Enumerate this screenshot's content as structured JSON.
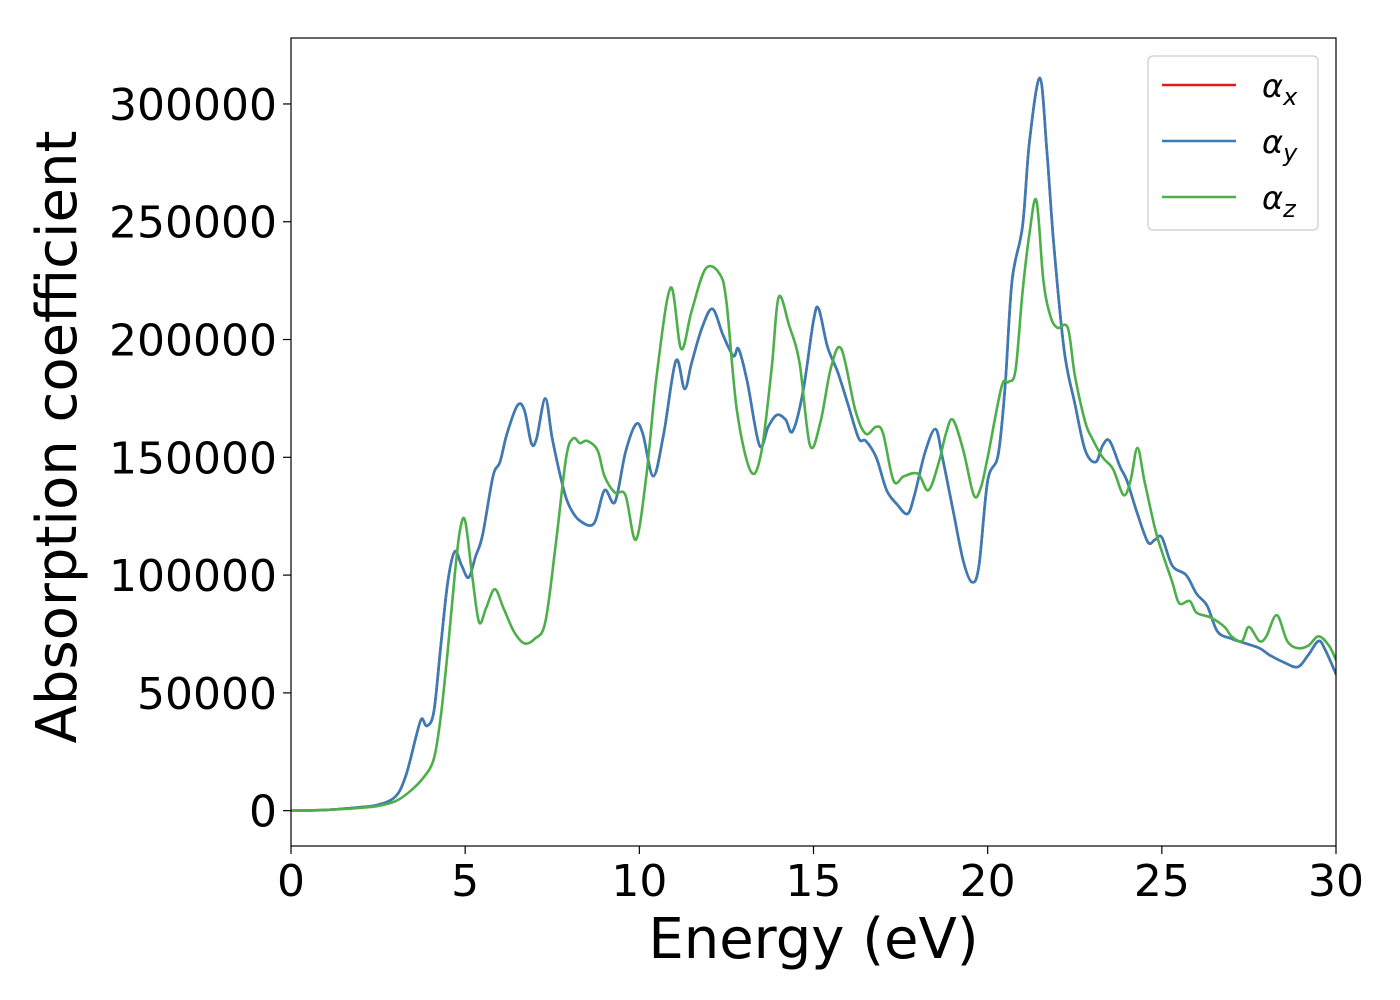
{
  "chart_data": {
    "type": "line",
    "title": "",
    "xlabel": "Energy (eV)",
    "ylabel": "Absorption coefficient",
    "xlim": [
      0,
      30
    ],
    "ylim": [
      -15000,
      328000
    ],
    "xticks": [
      0,
      5,
      10,
      15,
      20,
      25,
      30
    ],
    "yticks": [
      0,
      50000,
      100000,
      150000,
      200000,
      250000,
      300000
    ],
    "grid": false,
    "legend_position": "top-right",
    "series": [
      {
        "name": "αx",
        "name_base": "α",
        "name_sub": "x",
        "color": "#e41a1c",
        "x": [
          0,
          1,
          2,
          2.5,
          3,
          3.3,
          3.6,
          3.75,
          3.9,
          4.1,
          4.3,
          4.5,
          4.7,
          4.9,
          5.1,
          5.3,
          5.5,
          5.8,
          6.0,
          6.2,
          6.5,
          6.7,
          6.9,
          7.05,
          7.3,
          7.5,
          7.8,
          8.0,
          8.3,
          8.7,
          9.0,
          9.3,
          9.6,
          9.9,
          10.1,
          10.4,
          10.7,
          11.05,
          11.3,
          11.5,
          11.8,
          12.1,
          12.4,
          12.7,
          12.85,
          13.1,
          13.45,
          13.7,
          13.95,
          14.2,
          14.4,
          14.7,
          15.0,
          15.15,
          15.4,
          15.7,
          16.0,
          16.3,
          16.5,
          16.8,
          17.1,
          17.4,
          17.7,
          17.9,
          18.2,
          18.5,
          18.7,
          19.0,
          19.3,
          19.55,
          19.75,
          20.0,
          20.3,
          20.5,
          20.7,
          21.0,
          21.2,
          21.5,
          21.7,
          21.9,
          22.2,
          22.5,
          22.8,
          23.1,
          23.3,
          23.5,
          23.8,
          24.0,
          24.3,
          24.6,
          24.8,
          25.0,
          25.3,
          25.7,
          26.0,
          26.3,
          26.6,
          27.0,
          27.4,
          27.8,
          28.1,
          28.5,
          28.9,
          29.2,
          29.5,
          29.7,
          30.0
        ],
        "values": [
          0,
          300,
          1500,
          2500,
          6000,
          15000,
          32000,
          39000,
          36000,
          42000,
          70000,
          97000,
          110000,
          104000,
          99000,
          108000,
          117000,
          142000,
          148000,
          160000,
          172000,
          170000,
          156000,
          158000,
          175000,
          158000,
          138000,
          129000,
          123000,
          122000,
          136000,
          131000,
          152000,
          164000,
          160000,
          142000,
          160000,
          191000,
          179000,
          190000,
          205000,
          213000,
          202000,
          193000,
          196000,
          182000,
          155000,
          163000,
          168000,
          166000,
          161000,
          178000,
          208000,
          213000,
          197000,
          186000,
          172000,
          158000,
          157000,
          150000,
          136000,
          130000,
          126000,
          134000,
          152000,
          162000,
          150000,
          128000,
          106000,
          97000,
          104000,
          140000,
          151000,
          180000,
          225000,
          248000,
          284000,
          311000,
          280000,
          240000,
          195000,
          173000,
          153000,
          148000,
          155000,
          157000,
          146000,
          140000,
          126000,
          114000,
          115000,
          116000,
          104000,
          100000,
          92000,
          87000,
          76000,
          73000,
          71000,
          69000,
          66000,
          63000,
          61000,
          66000,
          72000,
          68000,
          58000
        ]
      },
      {
        "name": "αy",
        "name_base": "α",
        "name_sub": "y",
        "color": "#377eb8",
        "x": [
          0,
          1,
          2,
          2.5,
          3,
          3.3,
          3.6,
          3.75,
          3.9,
          4.1,
          4.3,
          4.5,
          4.7,
          4.9,
          5.1,
          5.3,
          5.5,
          5.8,
          6.0,
          6.2,
          6.5,
          6.7,
          6.9,
          7.05,
          7.3,
          7.5,
          7.8,
          8.0,
          8.3,
          8.7,
          9.0,
          9.3,
          9.6,
          9.9,
          10.1,
          10.4,
          10.7,
          11.05,
          11.3,
          11.5,
          11.8,
          12.1,
          12.4,
          12.7,
          12.85,
          13.1,
          13.45,
          13.7,
          13.95,
          14.2,
          14.4,
          14.7,
          15.0,
          15.15,
          15.4,
          15.7,
          16.0,
          16.3,
          16.5,
          16.8,
          17.1,
          17.4,
          17.7,
          17.9,
          18.2,
          18.5,
          18.7,
          19.0,
          19.3,
          19.55,
          19.75,
          20.0,
          20.3,
          20.5,
          20.7,
          21.0,
          21.2,
          21.5,
          21.7,
          21.9,
          22.2,
          22.5,
          22.8,
          23.1,
          23.3,
          23.5,
          23.8,
          24.0,
          24.3,
          24.6,
          24.8,
          25.0,
          25.3,
          25.7,
          26.0,
          26.3,
          26.6,
          27.0,
          27.4,
          27.8,
          28.1,
          28.5,
          28.9,
          29.2,
          29.5,
          29.7,
          30.0
        ],
        "values": [
          0,
          300,
          1500,
          2500,
          6000,
          15000,
          32000,
          39000,
          36000,
          42000,
          70000,
          97000,
          110000,
          104000,
          99000,
          108000,
          117000,
          142000,
          148000,
          160000,
          172000,
          170000,
          156000,
          158000,
          175000,
          158000,
          138000,
          129000,
          123000,
          122000,
          136000,
          131000,
          152000,
          164000,
          160000,
          142000,
          160000,
          191000,
          179000,
          190000,
          205000,
          213000,
          202000,
          193000,
          196000,
          182000,
          155000,
          163000,
          168000,
          166000,
          161000,
          178000,
          208000,
          213000,
          197000,
          186000,
          172000,
          158000,
          157000,
          150000,
          136000,
          130000,
          126000,
          134000,
          152000,
          162000,
          150000,
          128000,
          106000,
          97000,
          104000,
          140000,
          151000,
          180000,
          225000,
          248000,
          284000,
          311000,
          280000,
          240000,
          195000,
          173000,
          153000,
          148000,
          155000,
          157000,
          146000,
          140000,
          126000,
          114000,
          115000,
          116000,
          104000,
          100000,
          92000,
          87000,
          76000,
          73000,
          71000,
          69000,
          66000,
          63000,
          61000,
          66000,
          72000,
          68000,
          58000
        ]
      },
      {
        "name": "αz",
        "name_base": "α",
        "name_sub": "z",
        "color": "#4daf4a",
        "x": [
          0,
          1,
          2,
          2.5,
          3,
          3.4,
          3.8,
          4.1,
          4.3,
          4.5,
          4.7,
          4.85,
          5.0,
          5.2,
          5.4,
          5.6,
          5.85,
          6.1,
          6.4,
          6.7,
          7.0,
          7.3,
          7.6,
          7.9,
          8.1,
          8.3,
          8.5,
          8.8,
          9.0,
          9.3,
          9.6,
          9.9,
          10.2,
          10.5,
          10.9,
          11.2,
          11.5,
          11.9,
          12.3,
          12.5,
          12.8,
          13.2,
          13.5,
          13.8,
          14.0,
          14.3,
          14.6,
          14.9,
          15.2,
          15.5,
          15.8,
          16.2,
          16.5,
          16.8,
          17.0,
          17.3,
          17.6,
          18.0,
          18.3,
          18.6,
          18.8,
          19.0,
          19.3,
          19.6,
          19.8,
          20.0,
          20.4,
          20.6,
          20.8,
          21.0,
          21.2,
          21.4,
          21.6,
          21.8,
          22.0,
          22.3,
          22.5,
          22.8,
          23.0,
          23.3,
          23.6,
          23.9,
          24.1,
          24.3,
          24.5,
          24.8,
          25.0,
          25.3,
          25.5,
          25.8,
          26.0,
          26.4,
          26.8,
          27.0,
          27.3,
          27.5,
          27.8,
          28.0,
          28.3,
          28.6,
          28.9,
          29.2,
          29.5,
          29.8,
          30.0
        ],
        "values": [
          0,
          300,
          1200,
          2000,
          4000,
          8000,
          14000,
          22000,
          40000,
          68000,
          100000,
          119000,
          123000,
          100000,
          80000,
          86000,
          94000,
          86000,
          76000,
          71000,
          73000,
          80000,
          113000,
          150000,
          158000,
          156000,
          157000,
          153000,
          142000,
          135000,
          134000,
          115000,
          142000,
          185000,
          222000,
          196000,
          212000,
          230000,
          228000,
          216000,
          170000,
          144000,
          152000,
          188000,
          218000,
          206000,
          190000,
          155000,
          165000,
          188000,
          196000,
          170000,
          160000,
          163000,
          160000,
          140000,
          142000,
          143000,
          136000,
          148000,
          160000,
          166000,
          153000,
          134000,
          137000,
          150000,
          180000,
          182000,
          187000,
          220000,
          245000,
          259000,
          225000,
          210000,
          205000,
          205000,
          185000,
          165000,
          158000,
          150000,
          145000,
          134000,
          140000,
          154000,
          140000,
          120000,
          110000,
          97000,
          88000,
          89000,
          84000,
          82000,
          78000,
          74000,
          72000,
          78000,
          72000,
          74000,
          83000,
          72000,
          69000,
          70000,
          74000,
          70000,
          64000
        ]
      }
    ]
  }
}
